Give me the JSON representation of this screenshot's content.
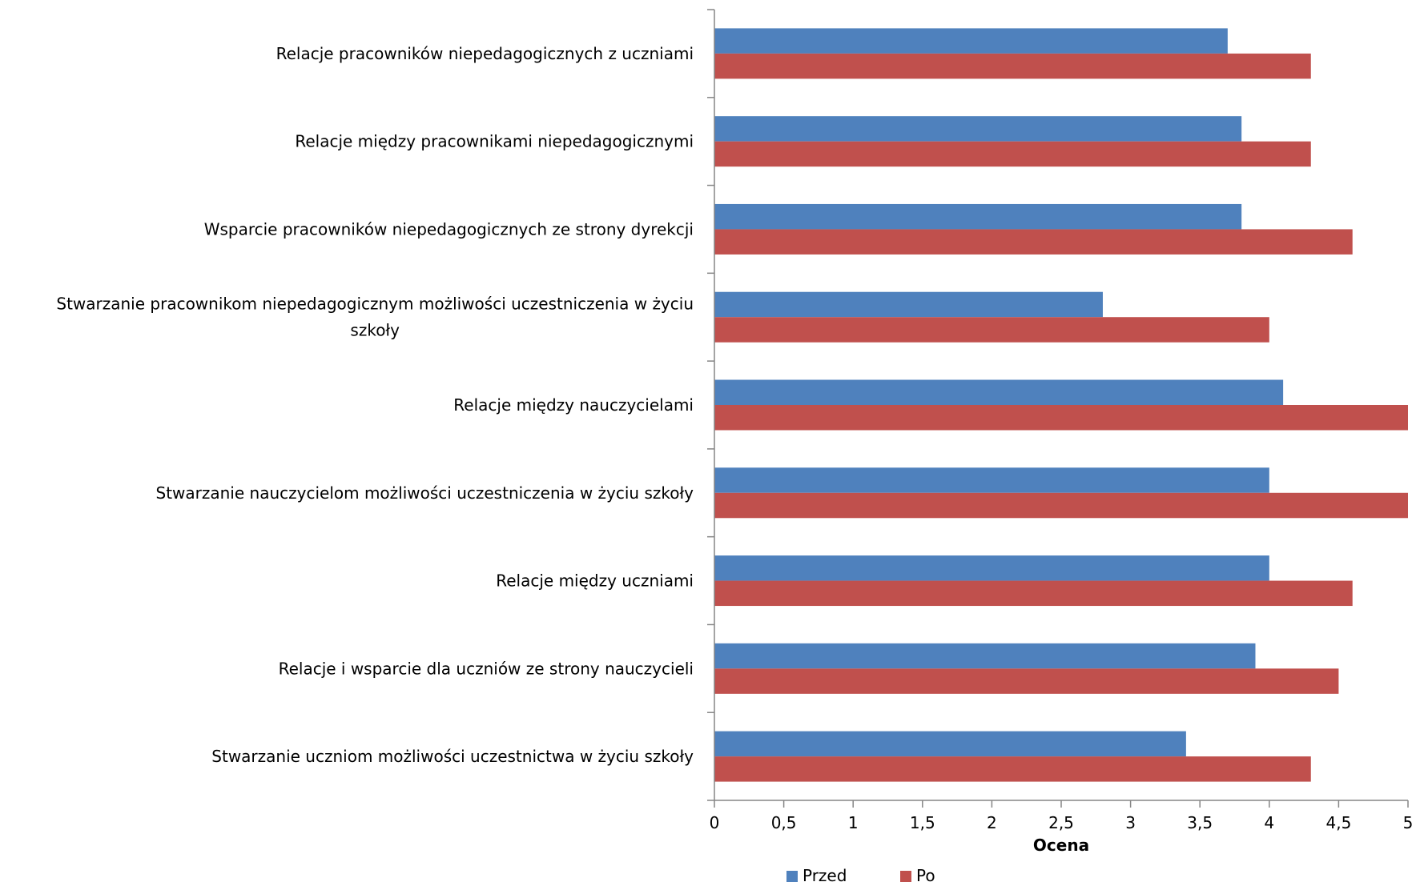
{
  "chart_data": {
    "type": "bar",
    "orientation": "horizontal",
    "title": "",
    "xlabel": "Ocena",
    "ylabel": "",
    "xlim": [
      0,
      5
    ],
    "x_ticks": [
      "0",
      "0,5",
      "1",
      "1,5",
      "2",
      "2,5",
      "3",
      "3,5",
      "4",
      "4,5",
      "5"
    ],
    "grid": false,
    "legend_position": "bottom",
    "categories": [
      [
        "Relacje pracowników niepedagogicznych z uczniami"
      ],
      [
        "Relacje między pracownikami niepedagogicznymi"
      ],
      [
        "Wsparcie pracowników niepedagogicznych ze strony dyrekcji"
      ],
      [
        "Stwarzanie pracownikom niepedagogicznym możliwości uczestniczenia w życiu",
        "szkoły"
      ],
      [
        "Relacje między nauczycielami"
      ],
      [
        "Stwarzanie nauczycielom możliwości uczestniczenia w życiu szkoły"
      ],
      [
        "Relacje między uczniami"
      ],
      [
        "Relacje i wsparcie dla uczniów ze strony nauczycieli"
      ],
      [
        "Stwarzanie uczniom możliwości uczestnictwa w życiu szkoły"
      ]
    ],
    "series": [
      {
        "name": "Przed",
        "color": "#4F81BD",
        "values": [
          3.7,
          3.8,
          3.8,
          2.8,
          4.1,
          4.0,
          4.0,
          3.9,
          3.4
        ]
      },
      {
        "name": "Po",
        "color": "#C0504D",
        "values": [
          4.3,
          4.3,
          4.6,
          4.0,
          5.0,
          5.0,
          4.6,
          4.5,
          4.3
        ]
      }
    ]
  }
}
